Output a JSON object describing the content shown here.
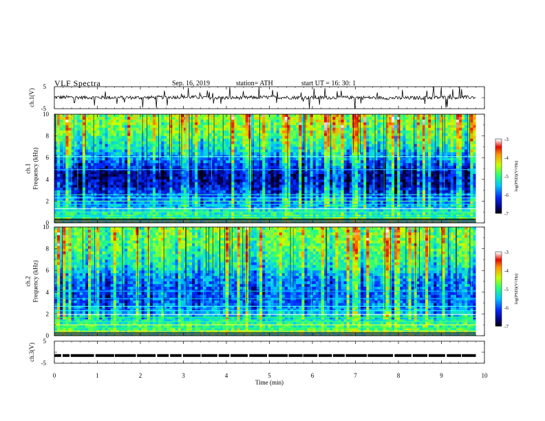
{
  "header": {
    "title": "VLF  Spectra",
    "date": "Sep. 16, 2019",
    "station": "station= ATH",
    "start": "start  UT  =    16: 30: 1"
  },
  "colors": {
    "spectrum_low": "#000080",
    "spectrum_mid": "#00c8ff",
    "spectrum_green": "#30ff30",
    "spectrum_high": "#ff2000",
    "spectrum_max": "#ffffff",
    "trace": "#000000"
  },
  "chart_data": [
    {
      "type": "line",
      "panel": "ch1-waveform",
      "ylabel": "ch.1(V)",
      "ylim": [
        -5,
        5
      ],
      "yticks": [
        "5",
        "-5"
      ],
      "xlim": [
        0,
        9.8
      ],
      "x": [
        0,
        1,
        2,
        3,
        4,
        5,
        6,
        7,
        8,
        9,
        9.8
      ],
      "values": [
        0.2,
        0.1,
        0.0,
        0.3,
        -0.1,
        0.2,
        0.0,
        0.1,
        -0.2,
        0.1,
        0.2
      ]
    },
    {
      "type": "heatmap",
      "panel": "ch1-spectrogram",
      "ylabel": "ch.1\nFrequency  (kHz)",
      "ylim": [
        0,
        10
      ],
      "yticks": [
        "0",
        "2",
        "4",
        "6",
        "8",
        "10"
      ],
      "xlim": [
        0,
        9.8
      ],
      "colorbar": {
        "label": "log(PSD)(V²/Hz)",
        "ticks": [
          "-3",
          "-4",
          "-5",
          "-6",
          "-7"
        ],
        "range": [
          -7,
          -3
        ]
      },
      "rows_khz": [
        0.5,
        1.5,
        2.5,
        3.5,
        4.5,
        5.5,
        6.5,
        7.5,
        8.5,
        9.5
      ],
      "mean_log_psd": [
        -4.9,
        -5.5,
        -5.9,
        -6.4,
        -6.5,
        -5.9,
        -5.4,
        -5.0,
        -4.7,
        -4.5
      ]
    },
    {
      "type": "heatmap",
      "panel": "ch2-spectrogram",
      "ylabel": "ch.2\nFrequency  (kHz)",
      "ylim": [
        0,
        10
      ],
      "yticks": [
        "0",
        "2",
        "4",
        "6",
        "8",
        "10"
      ],
      "xlim": [
        0,
        9.8
      ],
      "colorbar": {
        "label": "log(PSD)(V²/Hz)",
        "ticks": [
          "-3",
          "-4",
          "-5",
          "-6",
          "-7"
        ],
        "range": [
          -7,
          -3
        ]
      },
      "rows_khz": [
        0.5,
        1.5,
        2.5,
        3.5,
        4.5,
        5.5,
        6.5,
        7.5,
        8.5,
        9.5
      ],
      "mean_log_psd": [
        -4.8,
        -5.2,
        -5.7,
        -5.9,
        -5.8,
        -5.6,
        -5.1,
        -4.9,
        -4.7,
        -4.6
      ]
    },
    {
      "type": "line",
      "panel": "ch3-waveform",
      "ylabel": "ch.3(V)",
      "ylim": [
        -5,
        5
      ],
      "yticks": [
        "5",
        "-5"
      ],
      "xlim": [
        0,
        9.8
      ],
      "x": [
        0,
        9.8
      ],
      "values": [
        -1.5,
        -1.5
      ]
    }
  ],
  "xaxis": {
    "label": "Time  (min)",
    "ticks": [
      "0",
      "1",
      "2",
      "3",
      "4",
      "5",
      "6",
      "7",
      "8",
      "9",
      "10"
    ],
    "range": [
      0,
      10
    ]
  }
}
